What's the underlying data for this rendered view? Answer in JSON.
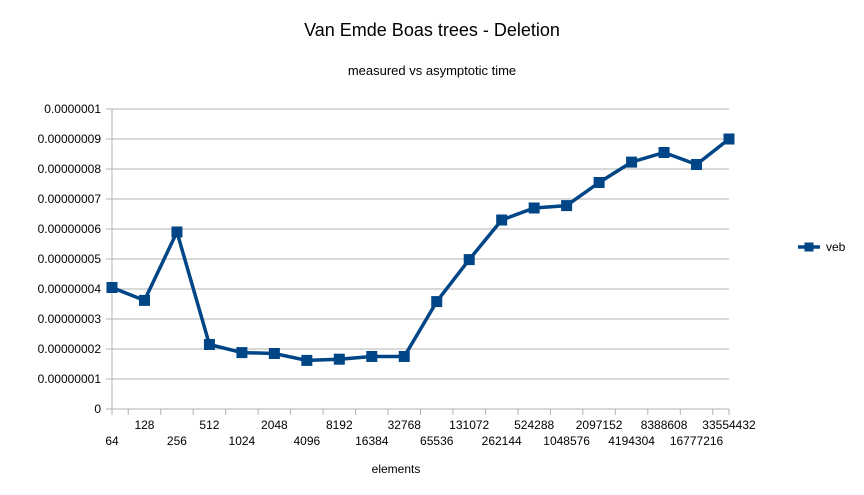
{
  "chart_data": {
    "type": "line",
    "title": "Van Emde Boas trees - Deletion",
    "subtitle": "measured vs asymptotic time",
    "xlabel": "elements",
    "ylabel": "",
    "categories": [
      "64",
      "128",
      "256",
      "512",
      "1024",
      "2048",
      "4096",
      "8192",
      "16384",
      "32768",
      "65536",
      "131072",
      "262144",
      "524288",
      "1048576",
      "2097152",
      "4194304",
      "8388608",
      "16777216",
      "33554432"
    ],
    "ylim": [
      0,
      1e-07
    ],
    "yticks": [
      "0",
      "0.00000001",
      "0.00000002",
      "0.00000003",
      "0.00000004",
      "0.00000005",
      "0.00000006",
      "0.00000007",
      "0.00000008",
      "0.00000009",
      "0.0000001"
    ],
    "grid": true,
    "legend_position": "right",
    "series": [
      {
        "name": "veb",
        "color": "#004586",
        "marker": "square",
        "values": [
          4.05e-08,
          3.62e-08,
          5.9e-08,
          2.15e-08,
          1.88e-08,
          1.85e-08,
          1.62e-08,
          1.66e-08,
          1.75e-08,
          1.75e-08,
          3.58e-08,
          4.98e-08,
          6.3e-08,
          6.7e-08,
          6.78e-08,
          7.55e-08,
          8.23e-08,
          8.55e-08,
          8.15e-08,
          9e-08
        ]
      }
    ]
  }
}
